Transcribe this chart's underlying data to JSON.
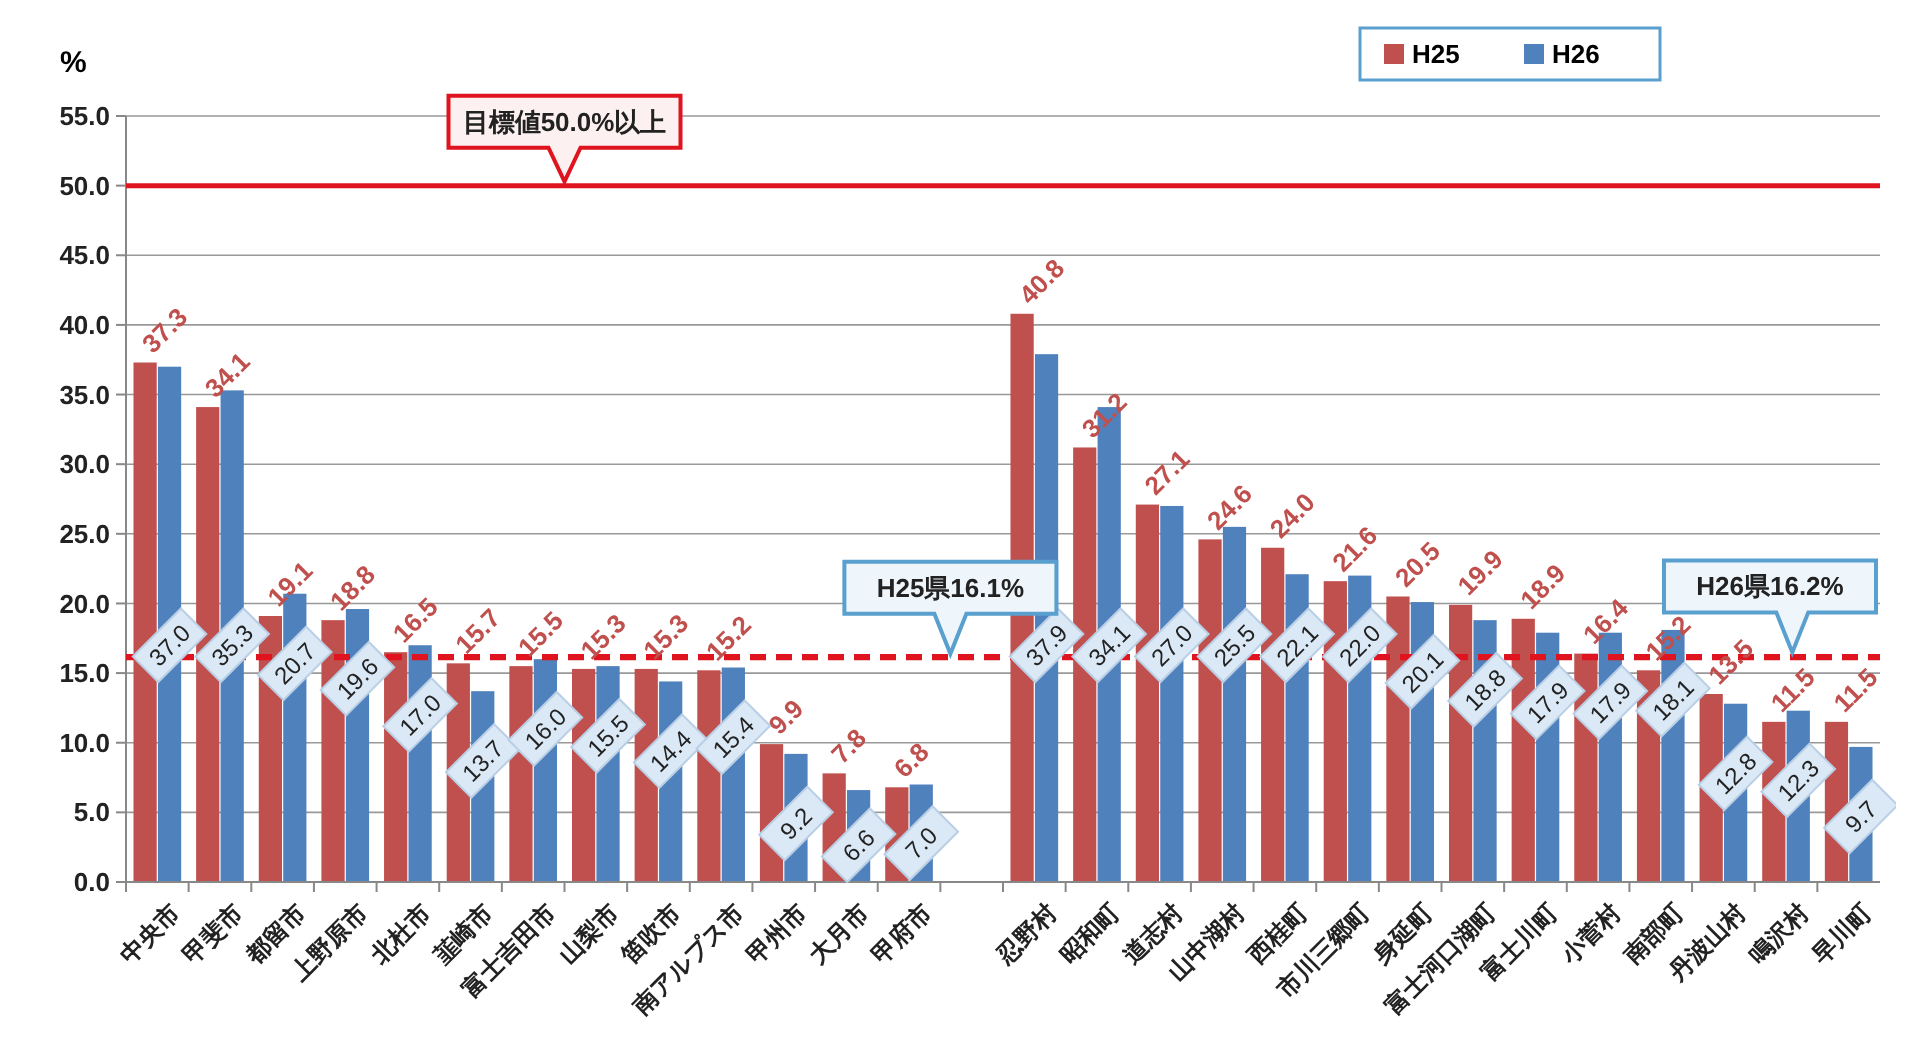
{
  "chart_data": {
    "type": "bar",
    "ylabel": "%",
    "categories": [
      "中央市",
      "甲斐市",
      "都留市",
      "上野原市",
      "北杜市",
      "韮崎市",
      "富士吉田市",
      "山梨市",
      "笛吹市",
      "南アルプス市",
      "甲州市",
      "大月市",
      "甲府市",
      null,
      "忍野村",
      "昭和町",
      "道志村",
      "山中湖村",
      "西桂町",
      "市川三郷町",
      "身延町",
      "富士河口湖町",
      "富士川町",
      "小菅村",
      "南部町",
      "丹波山村",
      "鳴沢村",
      "早川町"
    ],
    "series": [
      {
        "name": "H25",
        "color": "#c0504d",
        "values": [
          37.3,
          34.1,
          19.1,
          18.8,
          16.5,
          15.7,
          15.5,
          15.3,
          15.3,
          15.2,
          9.9,
          7.8,
          6.8,
          null,
          40.8,
          31.2,
          27.1,
          24.6,
          24.0,
          21.6,
          20.5,
          19.9,
          18.9,
          16.4,
          15.2,
          13.5,
          11.5,
          11.5
        ],
        "value_labels": [
          "37.3",
          "34.1",
          "19.1",
          "18.8",
          "16.5",
          "15.7",
          "15.5",
          "15.3",
          "15.3",
          "15.2",
          "9.9",
          "7.8",
          "6.8",
          null,
          "40.8",
          "31.2",
          "27.1",
          "24.6",
          "24.0",
          "21.6",
          "20.5",
          "19.9",
          "18.9",
          "16.4",
          "15.2",
          "13.5",
          "11.5",
          "11.5"
        ]
      },
      {
        "name": "H26",
        "color": "#4f81bd",
        "values": [
          37.0,
          35.3,
          20.7,
          19.6,
          17.0,
          13.7,
          16.0,
          15.5,
          14.4,
          15.4,
          9.2,
          6.6,
          7.0,
          null,
          37.9,
          34.1,
          27.0,
          25.5,
          22.1,
          22.0,
          20.1,
          18.8,
          17.9,
          17.9,
          18.1,
          12.8,
          12.3,
          9.7
        ],
        "value_labels": [
          "37.0",
          "35.3",
          "20.7",
          "19.6",
          "17.0",
          "13.7",
          "16.0",
          "15.5",
          "14.4",
          "15.4",
          "9.2",
          "6.6",
          "7.0",
          null,
          "37.9",
          "34.1",
          "27.0",
          "25.5",
          "22.1",
          "22.0",
          "20.1",
          "18.8",
          "17.9",
          "17.9",
          "18.1",
          "12.8",
          "12.3",
          "9.7"
        ]
      }
    ],
    "ylim": [
      0,
      55
    ],
    "yticks": [
      {
        "value": 0,
        "label": "0.0"
      },
      {
        "value": 5,
        "label": "5.0"
      },
      {
        "value": 10,
        "label": "10.0"
      },
      {
        "value": 15,
        "label": "15.0"
      },
      {
        "value": 20,
        "label": "20.0"
      },
      {
        "value": 25,
        "label": "25.0"
      },
      {
        "value": 30,
        "label": "30.0"
      },
      {
        "value": 35,
        "label": "35.0"
      },
      {
        "value": 40,
        "label": "40.0"
      },
      {
        "value": 45,
        "label": "45.0"
      },
      {
        "value": 50,
        "label": "50.0"
      },
      {
        "value": 55,
        "label": "55.0"
      }
    ],
    "grid": "y",
    "legend": "top right",
    "ref_lines": [
      {
        "axis": "y",
        "value": 50,
        "label": "目標値50.0%以上",
        "color": "#e0141e",
        "line_style": "solid"
      },
      {
        "axis": "y",
        "value": 16.1,
        "label": "H25県16.1%",
        "color": "#e0141e",
        "line_style": "dashed"
      },
      {
        "axis": "y",
        "value": 16.2,
        "label": "H26県16.2%",
        "color": "#e0141e",
        "line_style": "dashed"
      }
    ]
  }
}
